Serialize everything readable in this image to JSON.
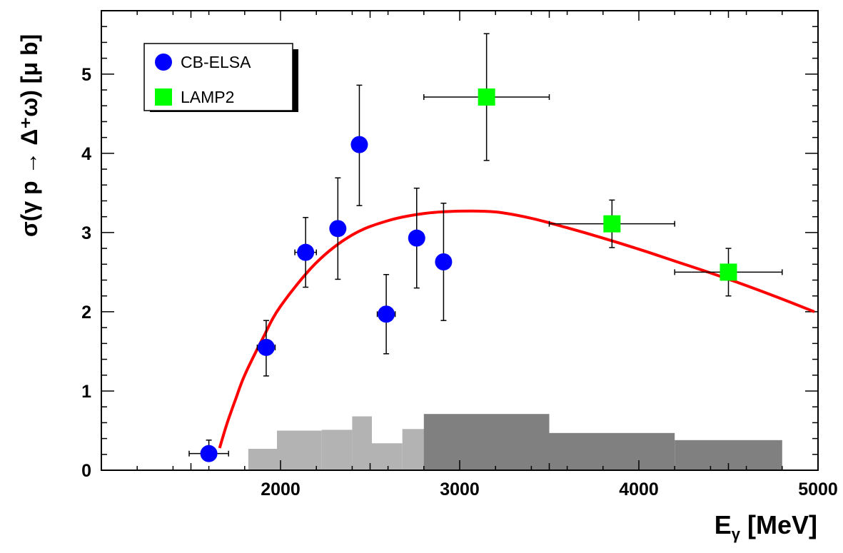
{
  "chart_data": {
    "type": "scatter",
    "xlabel": "E",
    "xlabel_sub": "γ",
    "xlabel_unit": " [MeV]",
    "ylabel": "σ(γ p → Δ⁺ω) [μ b]",
    "xlim": [
      1000,
      5000
    ],
    "ylim": [
      0,
      5.8
    ],
    "x_ticks": [
      2000,
      3000,
      4000,
      5000
    ],
    "y_ticks": [
      0,
      1,
      2,
      3,
      4,
      5
    ],
    "grid": false,
    "legend_position": "top-left",
    "series": [
      {
        "name": "CB-ELSA",
        "marker": "circle",
        "color": "#0000ff",
        "points": [
          {
            "x": 1600,
            "y": 0.21,
            "xerr": 110,
            "ylo": 0.14,
            "yhi": 0.38
          },
          {
            "x": 1920,
            "y": 1.55,
            "xerr": 50,
            "ylo": 1.19,
            "yhi": 1.89
          },
          {
            "x": 2140,
            "y": 2.75,
            "xerr": 60,
            "ylo": 2.31,
            "yhi": 3.19
          },
          {
            "x": 2320,
            "y": 3.05,
            "xerr": 30,
            "ylo": 2.41,
            "yhi": 3.69
          },
          {
            "x": 2440,
            "y": 4.11,
            "xerr": 30,
            "ylo": 3.34,
            "yhi": 4.86
          },
          {
            "x": 2590,
            "y": 1.97,
            "xerr": 50,
            "ylo": 1.47,
            "yhi": 2.47
          },
          {
            "x": 2760,
            "y": 2.93,
            "xerr": 40,
            "ylo": 2.3,
            "yhi": 3.56
          },
          {
            "x": 2910,
            "y": 2.63,
            "xerr": 30,
            "ylo": 1.89,
            "yhi": 3.37
          }
        ]
      },
      {
        "name": "LAMP2",
        "marker": "square",
        "color": "#00ff00",
        "points": [
          {
            "x": 3150,
            "y": 4.71,
            "xlo": 2800,
            "xhi": 3500,
            "ylo": 3.91,
            "yhi": 5.51
          },
          {
            "x": 3850,
            "y": 3.11,
            "xlo": 3500,
            "xhi": 4200,
            "ylo": 2.81,
            "yhi": 3.41
          },
          {
            "x": 4500,
            "y": 2.5,
            "xlo": 4200,
            "xhi": 4800,
            "ylo": 2.2,
            "yhi": 2.8
          }
        ]
      }
    ],
    "fit_curve": {
      "color": "#ff0000",
      "points": [
        [
          1660,
          0.28
        ],
        [
          1700,
          0.58
        ],
        [
          1750,
          0.9
        ],
        [
          1800,
          1.2
        ],
        [
          1900,
          1.66
        ],
        [
          2000,
          2.07
        ],
        [
          2200,
          2.62
        ],
        [
          2400,
          2.97
        ],
        [
          2600,
          3.15
        ],
        [
          2800,
          3.24
        ],
        [
          3000,
          3.27
        ],
        [
          3200,
          3.26
        ],
        [
          3400,
          3.18
        ],
        [
          3600,
          3.06
        ],
        [
          3800,
          2.93
        ],
        [
          4000,
          2.79
        ],
        [
          4200,
          2.64
        ],
        [
          4400,
          2.49
        ],
        [
          4600,
          2.33
        ],
        [
          4800,
          2.16
        ],
        [
          4980,
          2.0
        ]
      ]
    },
    "systematic_bands": [
      {
        "series": "CB-ELSA",
        "color": "#b3b3b3",
        "bins": [
          {
            "x0": 1820,
            "x1": 1980,
            "h": 0.27
          },
          {
            "x0": 1980,
            "x1": 2230,
            "h": 0.5
          },
          {
            "x0": 2230,
            "x1": 2400,
            "h": 0.51
          },
          {
            "x0": 2400,
            "x1": 2510,
            "h": 0.68
          },
          {
            "x0": 2510,
            "x1": 2680,
            "h": 0.34
          },
          {
            "x0": 2680,
            "x1": 2860,
            "h": 0.52
          },
          {
            "x0": 2860,
            "x1": 2960,
            "h": 0.52
          }
        ]
      },
      {
        "series": "LAMP2",
        "color": "#808080",
        "bins": [
          {
            "x0": 2800,
            "x1": 3500,
            "h": 0.71
          },
          {
            "x0": 3500,
            "x1": 4200,
            "h": 0.47
          },
          {
            "x0": 4200,
            "x1": 4800,
            "h": 0.38
          }
        ]
      }
    ]
  }
}
